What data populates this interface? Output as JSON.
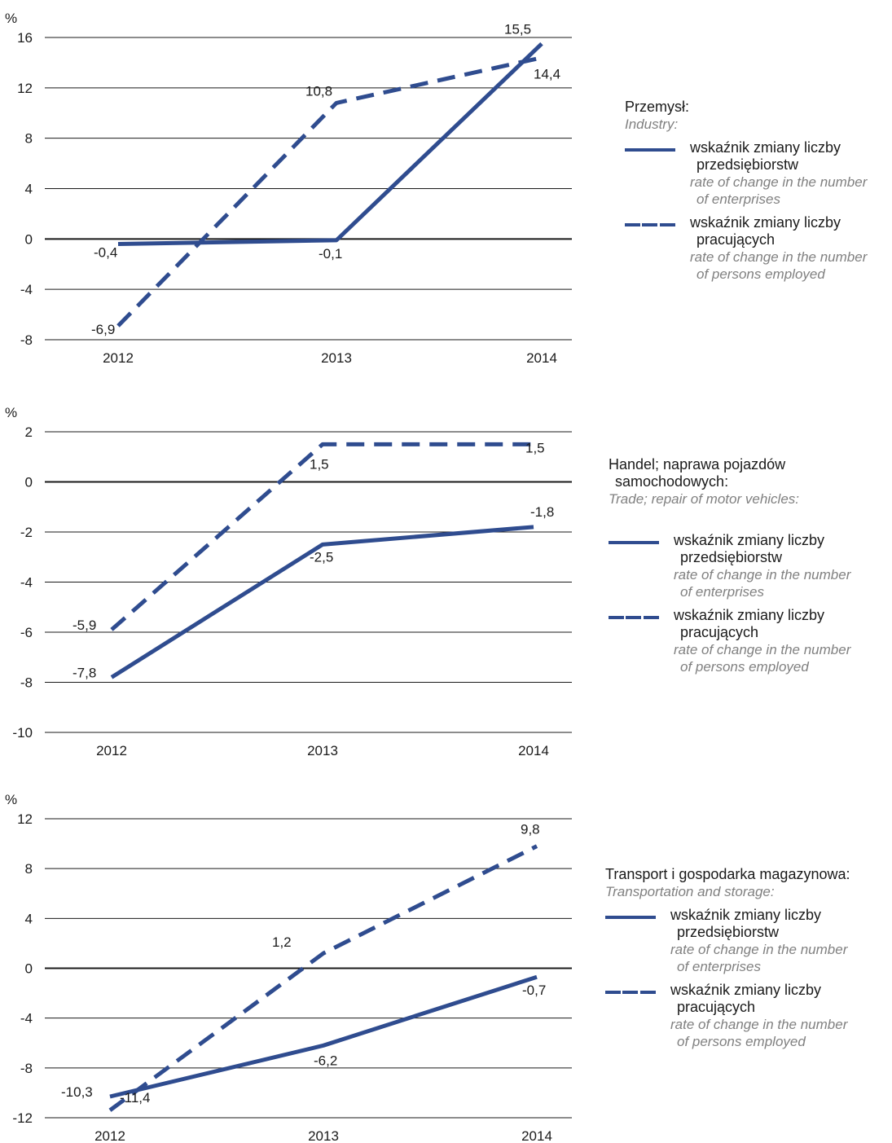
{
  "chart_data": [
    {
      "type": "line",
      "unit_label": "%",
      "categories": [
        "2012",
        "2013",
        "2014"
      ],
      "yticks": [
        "16",
        "12",
        "8",
        "4",
        "0",
        "-4",
        "-8"
      ],
      "ylim": [
        -8,
        16
      ],
      "series": [
        {
          "name": "wskaźnik zmiany liczby przedsiębiorstw",
          "style": "solid",
          "values": [
            -0.4,
            -0.1,
            15.5
          ],
          "labels": [
            "-0,4",
            "-0,1",
            "15,5"
          ]
        },
        {
          "name": "wskaźnik zmiany liczby pracujących",
          "style": "dashed",
          "values": [
            -6.9,
            10.8,
            14.4
          ],
          "labels": [
            "-6,9",
            "10,8",
            "14,4"
          ]
        }
      ],
      "legend": {
        "title": "Przemysł:",
        "title_en": "Industry:",
        "items": [
          {
            "pl_1": "wskaźnik zmiany liczby",
            "pl_2": "przedsiębiorstw",
            "en_1": "rate of change in the number",
            "en_2": "of enterprises"
          },
          {
            "pl_1": "wskaźnik zmiany liczby",
            "pl_2": "pracujących",
            "en_1": "rate of change in the number",
            "en_2": "of persons employed"
          }
        ]
      }
    },
    {
      "type": "line",
      "unit_label": "%",
      "categories": [
        "2012",
        "2013",
        "2014"
      ],
      "yticks": [
        "2",
        "0",
        "-2",
        "-4",
        "-6",
        "-8",
        "-10"
      ],
      "ylim": [
        -10,
        2
      ],
      "series": [
        {
          "name": "wskaźnik zmiany liczby przedsiębiorstw",
          "style": "solid",
          "values": [
            -7.8,
            -2.5,
            -1.8
          ],
          "labels": [
            "-7,8",
            "-2,5",
            "-1,8"
          ]
        },
        {
          "name": "wskaźnik zmiany liczby pracujących",
          "style": "dashed",
          "values": [
            -5.9,
            1.5,
            1.5
          ],
          "labels": [
            "-5,9",
            "1,5",
            "1,5"
          ]
        }
      ],
      "legend": {
        "title_1": "Handel; naprawa pojazdów",
        "title_2": "samochodowych:",
        "title_en": "Trade; repair of motor vehicles:",
        "items": [
          {
            "pl_1": "wskaźnik zmiany liczby",
            "pl_2": "przedsiębiorstw",
            "en_1": "rate of change in the number",
            "en_2": "of enterprises"
          },
          {
            "pl_1": "wskaźnik zmiany liczby",
            "pl_2": "pracujących",
            "en_1": "rate of change in the number",
            "en_2": "of persons employed"
          }
        ]
      }
    },
    {
      "type": "line",
      "unit_label": "%",
      "categories": [
        "2012",
        "2013",
        "2014"
      ],
      "yticks": [
        "12",
        "8",
        "4",
        "0",
        "-4",
        "-8",
        "-12"
      ],
      "ylim": [
        -12,
        12
      ],
      "series": [
        {
          "name": "wskaźnik zmiany liczby przedsiębiorstw",
          "style": "solid",
          "values": [
            -10.3,
            -6.2,
            -0.7
          ],
          "labels": [
            "-10,3",
            "-6,2",
            "-0,7"
          ]
        },
        {
          "name": "wskaźnik zmiany liczby pracujących",
          "style": "dashed",
          "values": [
            -11.4,
            1.2,
            9.8
          ],
          "labels": [
            "-11,4",
            "1,2",
            "9,8"
          ]
        }
      ],
      "legend": {
        "title": "Transport i gospodarka magazynowa:",
        "title_en": "Transportation and storage:",
        "items": [
          {
            "pl_1": "wskaźnik zmiany liczby",
            "pl_2": "przedsiębiorstw",
            "en_1": "rate of change in the number",
            "en_2": "of enterprises"
          },
          {
            "pl_1": "wskaźnik zmiany liczby",
            "pl_2": "pracujących",
            "en_1": "rate of change in the number",
            "en_2": "of persons employed"
          }
        ]
      }
    }
  ],
  "colors": {
    "series": "#2f4c8f",
    "grid": "#1a1a1a",
    "zero": "#1a1a1a"
  }
}
